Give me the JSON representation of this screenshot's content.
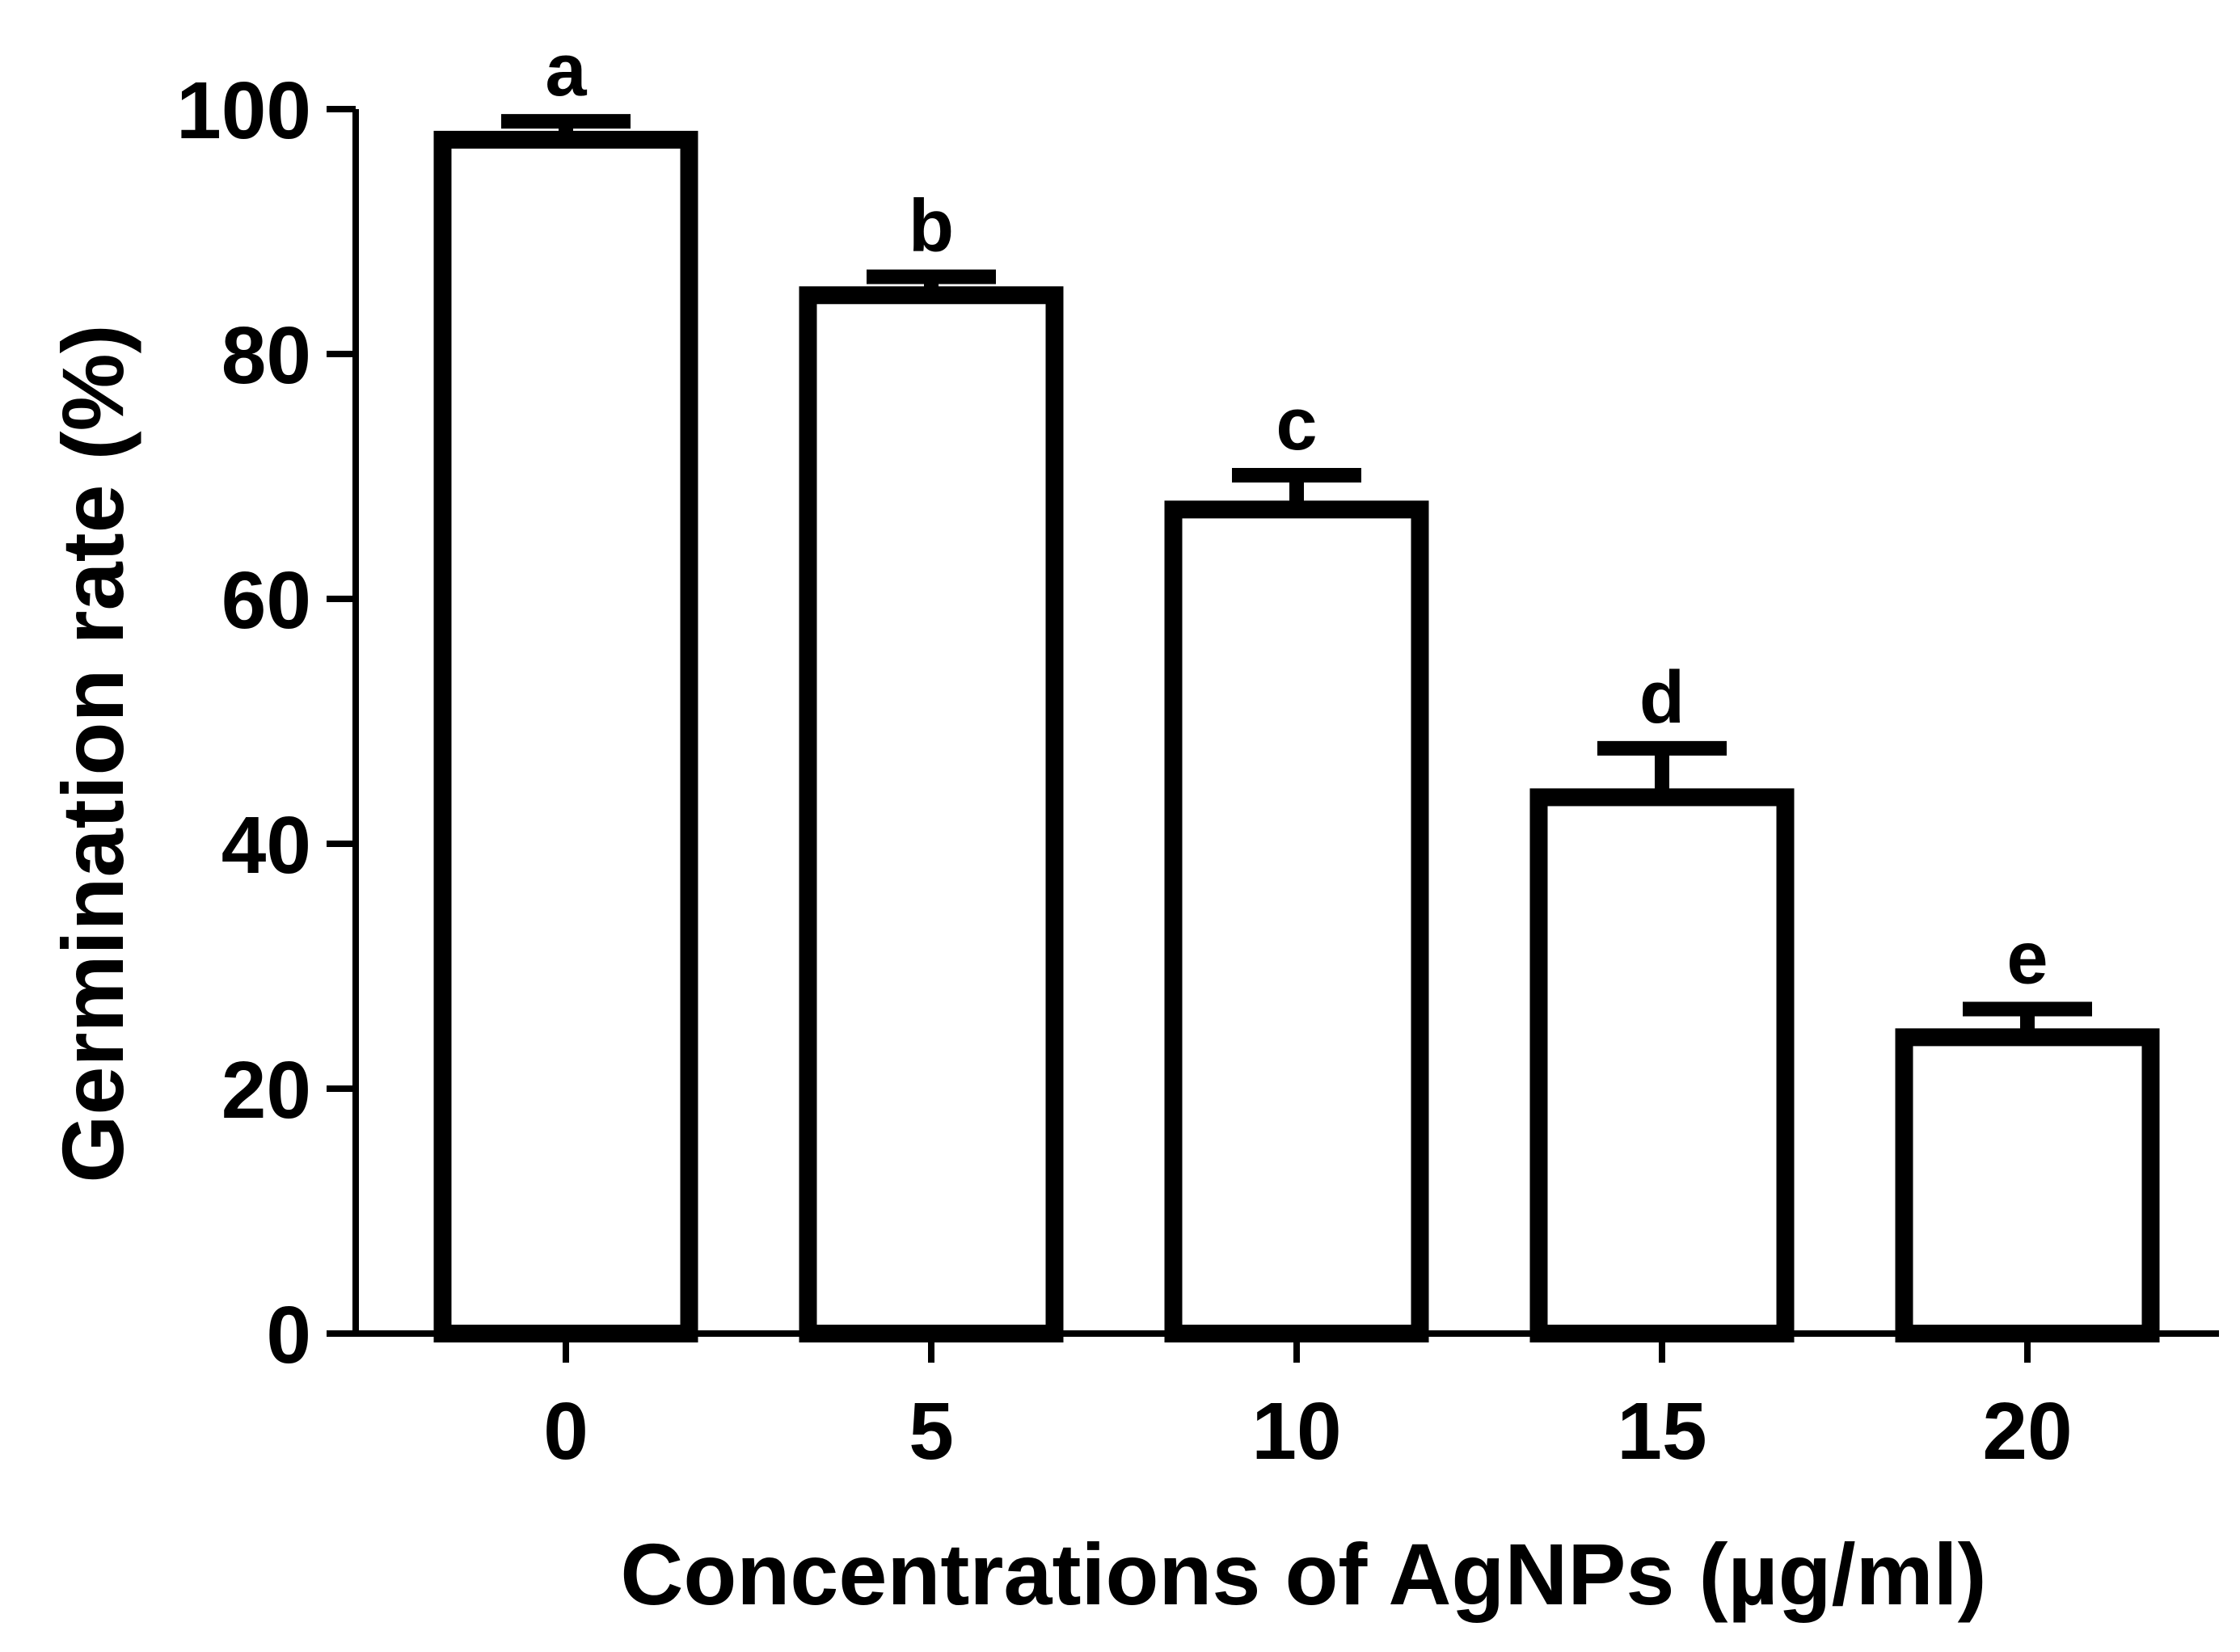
{
  "chart_data": {
    "type": "bar",
    "title": "",
    "xlabel": "Concentrations of AgNPs (µg/ml)",
    "ylabel": "Germination rate (%)",
    "categories": [
      "0",
      "5",
      "10",
      "15",
      "20"
    ],
    "values": [
      97.5,
      84.8,
      67.3,
      43.8,
      24.2
    ],
    "errors": [
      1.5,
      1.5,
      2.8,
      4.0,
      2.3
    ],
    "significance_letters": [
      "a",
      "b",
      "c",
      "d",
      "e"
    ],
    "ylim": [
      0,
      100
    ],
    "yticks": [
      0,
      20,
      40,
      60,
      80,
      100
    ],
    "grid": false,
    "colors": {
      "bar_fill": "#ffffff",
      "bar_stroke": "#000000",
      "axis": "#000000"
    }
  }
}
